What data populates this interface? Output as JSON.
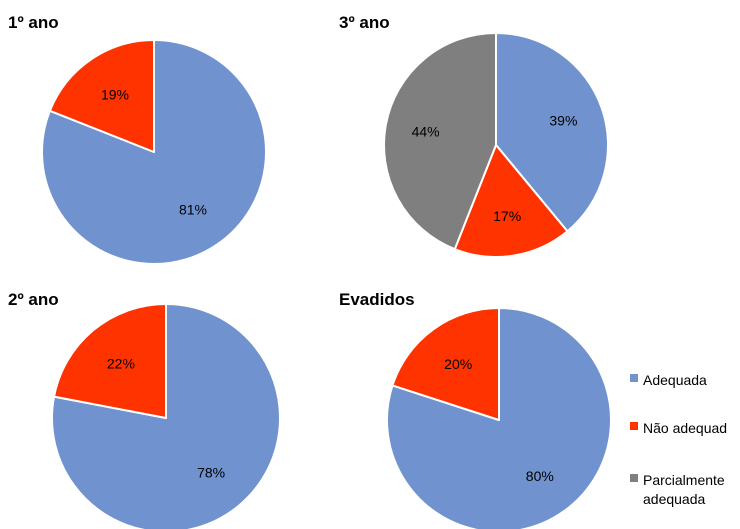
{
  "chart_data": [
    {
      "type": "pie",
      "title": "1º ano",
      "categories": [
        "Adequada",
        "Não adequad"
      ],
      "values": [
        81,
        19
      ],
      "labels": [
        "81%",
        "19%"
      ]
    },
    {
      "type": "pie",
      "title": "3º ano",
      "categories": [
        "Adequada",
        "Não adequad",
        "Parcialmente adequada"
      ],
      "values": [
        39,
        17,
        44
      ],
      "labels": [
        "39%",
        "17%",
        "44%"
      ]
    },
    {
      "type": "pie",
      "title": "2º ano",
      "categories": [
        "Adequada",
        "Não adequad"
      ],
      "values": [
        78,
        22
      ],
      "labels": [
        "78%",
        "22%"
      ]
    },
    {
      "type": "pie",
      "title": "Evadidos",
      "categories": [
        "Adequada",
        "Não adequad"
      ],
      "values": [
        80,
        20
      ],
      "labels": [
        "80%",
        "20%"
      ]
    }
  ],
  "legend": {
    "position": "right",
    "items": [
      {
        "label": "Adequada",
        "color": "#7093D0"
      },
      {
        "label": "Não adequad",
        "color": "#FF3300"
      },
      {
        "label": "Parcialmente adequada",
        "label_lines": [
          "Parcialmente",
          "adequada"
        ],
        "color": "#7F7F7F"
      }
    ]
  },
  "colors": {
    "Adequada": "#7093D0",
    "Não adequad": "#FF3300",
    "Parcialmente adequada": "#7F7F7F"
  }
}
